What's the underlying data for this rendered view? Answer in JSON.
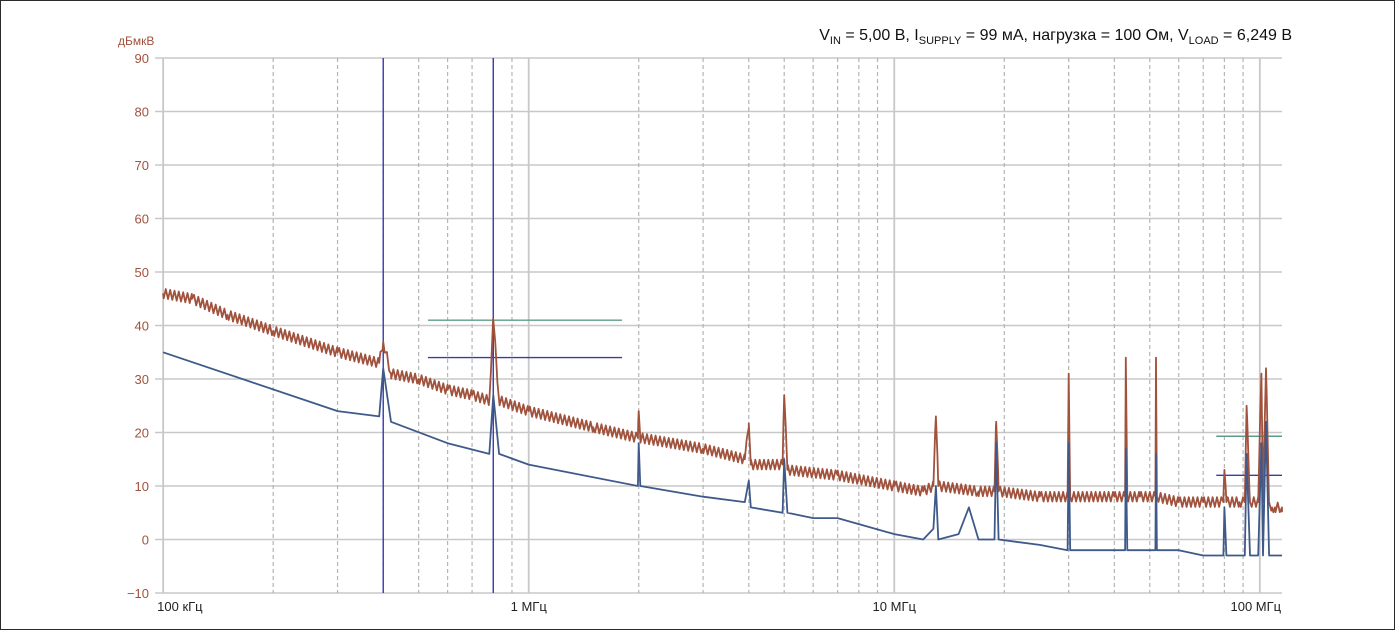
{
  "chart_data": {
    "type": "line",
    "title_parts": {
      "vin_sym": "V",
      "vin_sub": "IN",
      "vin_val": " = 5,00 В, ",
      "isup_sym": "I",
      "isup_sub": "SUPPLY",
      "isup_val": " = 99 мА, нагрузка = 100 Ом, ",
      "vload_sym": "V",
      "vload_sub": "LOAD",
      "vload_val": " = 6,249 В"
    },
    "ylabel": "дБмкВ",
    "x_scale": "log",
    "xlim_hz": [
      95000,
      115000000
    ],
    "ylim": [
      -10,
      90
    ],
    "y_ticks": [
      {
        "value": -10,
        "label": "−10"
      },
      {
        "value": 0,
        "label": "0"
      },
      {
        "value": 10,
        "label": "10"
      },
      {
        "value": 20,
        "label": "20"
      },
      {
        "value": 30,
        "label": "30"
      },
      {
        "value": 40,
        "label": "40"
      },
      {
        "value": 50,
        "label": "50"
      },
      {
        "value": 60,
        "label": "60"
      },
      {
        "value": 70,
        "label": "70"
      },
      {
        "value": 80,
        "label": "80"
      },
      {
        "value": 90,
        "label": "90"
      }
    ],
    "x_tick_labels": [
      {
        "value": 100000,
        "label": "100 кГц"
      },
      {
        "value": 1000000,
        "label": "1 МГц"
      },
      {
        "value": 10000000,
        "label": "10 МГц"
      },
      {
        "value": 100000000,
        "label": "100 МГц"
      }
    ],
    "grid": true,
    "colors": {
      "peak": "#a0523d",
      "average": "#3f5a8a",
      "limit_green": "#5e9c8a",
      "limit_blue": "#3a3ab0",
      "marker": "#3a3ab0",
      "grid": "#c8c8c8"
    },
    "vertical_markers_hz": [
      400000,
      800000
    ],
    "limit_lines": [
      {
        "color": "limit_green",
        "x_hz": [
          530000,
          1800000
        ],
        "y": 41
      },
      {
        "color": "limit_blue",
        "x_hz": [
          530000,
          1800000
        ],
        "y": 34
      },
      {
        "color": "limit_green",
        "x_hz": [
          76000000,
          115000000
        ],
        "y": 19.3
      },
      {
        "color": "limit_blue",
        "x_hz": [
          76000000,
          115000000
        ],
        "y": 12
      }
    ],
    "series": [
      {
        "key": "peak",
        "color": "peak",
        "x_hz": [
          100000,
          120000,
          150000,
          200000,
          300000,
          390000,
          400000,
          420000,
          500000,
          600000,
          700000,
          780000,
          800000,
          830000,
          1000000,
          1500000,
          1990000,
          2000000,
          2020000,
          3000000,
          3900000,
          4000000,
          4050000,
          4950000,
          5000000,
          5100000,
          7000000,
          10000000,
          12000000,
          12800000,
          13000000,
          13200000,
          17000000,
          18800000,
          19000000,
          19300000,
          25000000,
          29800000,
          30000000,
          30300000,
          40000000,
          42800000,
          43000000,
          43400000,
          47000000,
          51800000,
          52000000,
          52300000,
          60000000,
          70000000,
          79500000,
          80000000,
          81000000,
          88000000,
          91000000,
          92000000,
          94000000,
          99000000,
          101000000,
          102000000,
          104000000,
          106000000,
          108000000,
          110000000,
          115000000
        ],
        "values": [
          46,
          45,
          42,
          39,
          35,
          33,
          37,
          31,
          30,
          28,
          27,
          26,
          41,
          26,
          24,
          21,
          19,
          24,
          19,
          17,
          15,
          21,
          14,
          14,
          27,
          13,
          12,
          10,
          9,
          10,
          23,
          10,
          9,
          9,
          22,
          9,
          8,
          8,
          31,
          8,
          8,
          8,
          34,
          8,
          8,
          8,
          34,
          8,
          7,
          7,
          7,
          13,
          7,
          7,
          7,
          25,
          7,
          7,
          31,
          7,
          32,
          7,
          6,
          6,
          6
        ]
      },
      {
        "key": "average",
        "color": "average",
        "x_hz": [
          100000,
          300000,
          390000,
          400000,
          420000,
          600000,
          780000,
          800000,
          830000,
          1000000,
          1990000,
          2000000,
          2020000,
          3000000,
          3900000,
          4000000,
          4050000,
          4950000,
          5000000,
          5100000,
          6000000,
          7000000,
          10000000,
          12000000,
          12800000,
          13000000,
          13200000,
          15000000,
          16000000,
          17000000,
          18800000,
          19000000,
          19300000,
          25000000,
          29800000,
          30000000,
          30300000,
          40000000,
          42800000,
          43000000,
          43400000,
          47000000,
          51800000,
          52000000,
          52300000,
          60000000,
          70000000,
          79500000,
          80000000,
          81000000,
          88000000,
          91000000,
          92000000,
          94000000,
          99000000,
          101000000,
          102000000,
          104000000,
          106000000,
          108000000,
          110000000,
          115000000
        ],
        "values": [
          35,
          24,
          23,
          32,
          22,
          18,
          16,
          27,
          16,
          14,
          10,
          18,
          10,
          8,
          7,
          11,
          6,
          5,
          15,
          5,
          4,
          4,
          1,
          0,
          2,
          10,
          0,
          1,
          6,
          0,
          0,
          18,
          0,
          -1,
          -2,
          18,
          -2,
          -2,
          -2,
          17,
          -2,
          -2,
          -2,
          16,
          -2,
          -2,
          -3,
          -3,
          6,
          -3,
          -3,
          -3,
          16,
          -3,
          -3,
          18,
          -3,
          22,
          -3,
          -3,
          -3,
          -3
        ]
      }
    ]
  }
}
